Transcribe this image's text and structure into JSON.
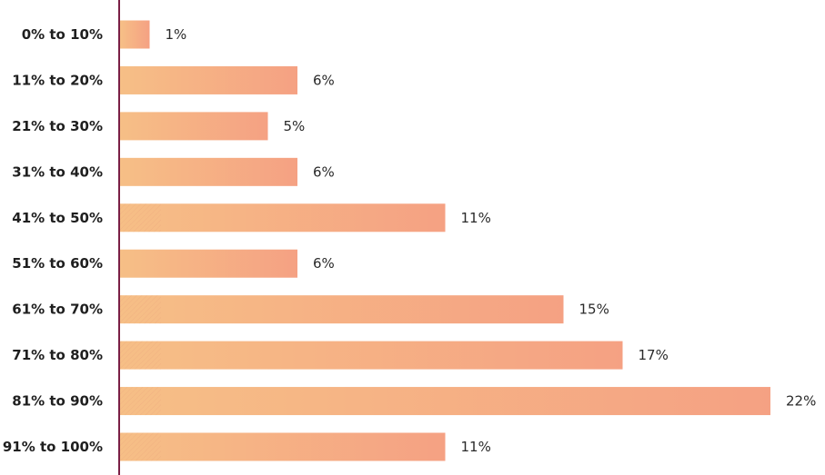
{
  "chart_data": {
    "type": "bar",
    "orientation": "horizontal",
    "categories": [
      "0% to 10%",
      "11% to 20%",
      "21% to 30%",
      "31% to 40%",
      "41% to 50%",
      "51% to 60%",
      "61% to 70%",
      "71% to 80%",
      "81% to 90%",
      "91% to 100%"
    ],
    "values": [
      1,
      6,
      5,
      6,
      11,
      6,
      15,
      17,
      22,
      11
    ],
    "value_labels": [
      "1%",
      "6%",
      "5%",
      "6%",
      "11%",
      "6%",
      "15%",
      "17%",
      "22%",
      "11%"
    ],
    "title": "",
    "xlabel": "",
    "ylabel": "",
    "xlim": [
      0,
      22
    ],
    "grid": false,
    "legend": "none",
    "colors": {
      "bar_start": "#F6BF86",
      "bar_end": "#F5A183",
      "axis_line": "#7A1F45",
      "category_text": "#1F1F1F",
      "value_text": "#2A2A2A"
    }
  }
}
